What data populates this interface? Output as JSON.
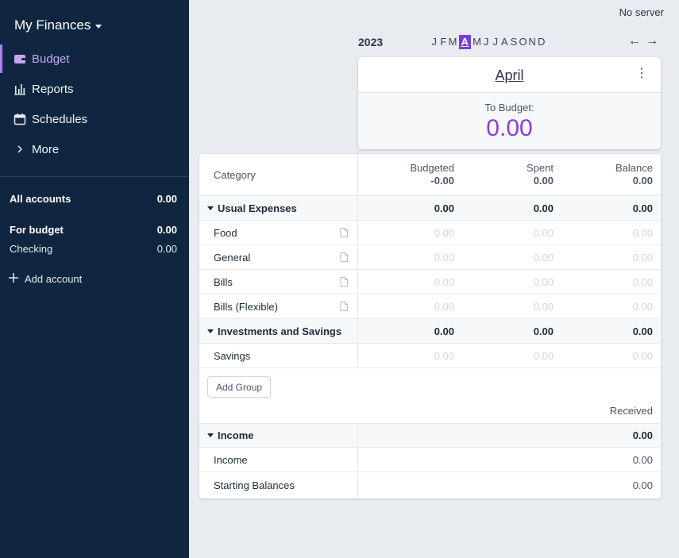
{
  "app": {
    "budget_name": "My Finances",
    "server_status": "No server"
  },
  "nav": [
    {
      "label": "Budget",
      "icon": "wallet-icon",
      "active": true
    },
    {
      "label": "Reports",
      "icon": "bar-chart-icon"
    },
    {
      "label": "Schedules",
      "icon": "calendar-icon"
    },
    {
      "label": "More",
      "icon": "chevron-right-icon"
    }
  ],
  "accounts": {
    "all_label": "All accounts",
    "all_value": "0.00",
    "for_budget_label": "For budget",
    "for_budget_value": "0.00",
    "checking_label": "Checking",
    "checking_value": "0.00",
    "add_label": "Add account"
  },
  "month_picker": {
    "year": "2023",
    "months": [
      "J",
      "F",
      "M",
      "A",
      "M",
      "J",
      "J",
      "A",
      "S",
      "O",
      "N",
      "D"
    ],
    "selected_index": 3,
    "prev_glyph": "←",
    "next_glyph": "→"
  },
  "month_card": {
    "title": "April",
    "menu_glyph": "⋮",
    "to_budget_label": "To Budget:",
    "to_budget_value": "0.00"
  },
  "table": {
    "header": {
      "category": "Category",
      "budgeted": "Budgeted",
      "budgeted_total": "-0.00",
      "spent": "Spent",
      "spent_total": "0.00",
      "balance": "Balance",
      "balance_total": "0.00"
    },
    "groups": [
      {
        "name": "Usual Expenses",
        "budgeted": "0.00",
        "spent": "0.00",
        "balance": "0.00",
        "categories": [
          {
            "name": "Food",
            "budgeted": "0.00",
            "spent": "0.00",
            "balance": "0.00"
          },
          {
            "name": "General",
            "budgeted": "0.00",
            "spent": "0.00",
            "balance": "0.00"
          },
          {
            "name": "Bills",
            "budgeted": "0.00",
            "spent": "0.00",
            "balance": "0.00"
          },
          {
            "name": "Bills (Flexible)",
            "budgeted": "0.00",
            "spent": "0.00",
            "balance": "0.00"
          }
        ]
      },
      {
        "name": "Investments and Savings",
        "budgeted": "0.00",
        "spent": "0.00",
        "balance": "0.00",
        "categories": [
          {
            "name": "Savings",
            "budgeted": "0.00",
            "spent": "0.00",
            "balance": "0.00"
          }
        ]
      }
    ],
    "add_group_label": "Add Group",
    "received_label": "Received",
    "income_group": {
      "name": "Income",
      "received": "0.00",
      "categories": [
        {
          "name": "Income",
          "received": "0.00"
        },
        {
          "name": "Starting Balances",
          "received": "0.00"
        }
      ]
    }
  },
  "colors": {
    "sidebar_bg": "#102640",
    "accent_purple": "#8a3ee0",
    "active_nav": "#c7a4f5",
    "page_bg": "#e8ebf0"
  }
}
